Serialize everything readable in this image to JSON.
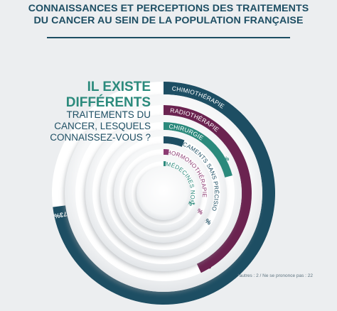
{
  "header": {
    "title_line1": "CONNAISSANCES ET PERCEPTIONS DES TRAITEMENTS",
    "title_line2": "DU CANCER AU SEIN DE LA POPULATION FRANÇAISE"
  },
  "question": {
    "line1": "IL EXISTE",
    "line2": "DIFFÉRENTS",
    "line3": "TRAITEMENTS DU",
    "line4": "CANCER, LESQUELS",
    "line5": "CONNAISSEZ-VOUS ?"
  },
  "footnote": "*autres : 2 / Ne se prononce pas : 22",
  "colors": {
    "teal_dark": "#1d4e63",
    "purple": "#6b2350",
    "green": "#2b8a7c",
    "light_purple": "#8c3a72",
    "light_teal": "#5aa4a6",
    "page_bg": "#eceef0",
    "header_text": "#1d4e63",
    "question_accent": "#2b8a7c"
  },
  "chart_data": {
    "type": "radial-bar",
    "unit": "%",
    "series": [
      {
        "label": "CHIMIOTHÉRAPIE",
        "value": 73,
        "value_label": "73%",
        "color": "#1d4e63"
      },
      {
        "label": "RADIOTHÉRAPIE",
        "value": 43,
        "value_label": "43%",
        "color": "#6b2350"
      },
      {
        "label": "CHIRURGIE",
        "value": 21,
        "value_label": "21%",
        "color": "#2b8a7c"
      },
      {
        "label": "MÉDICAMENTS SANS PRÉCISION",
        "value": 6,
        "value_label": "6%",
        "color": "#1d4e63"
      },
      {
        "label": "HORMONOTHÉRAPIE",
        "value": 2,
        "value_label": "2%",
        "color": "#8c3a72"
      },
      {
        "label": "MÉDECINES NON-CONVENTIONNELLES",
        "value": 1,
        "value_label": "1%*",
        "color": "#2b8a7c"
      }
    ]
  }
}
